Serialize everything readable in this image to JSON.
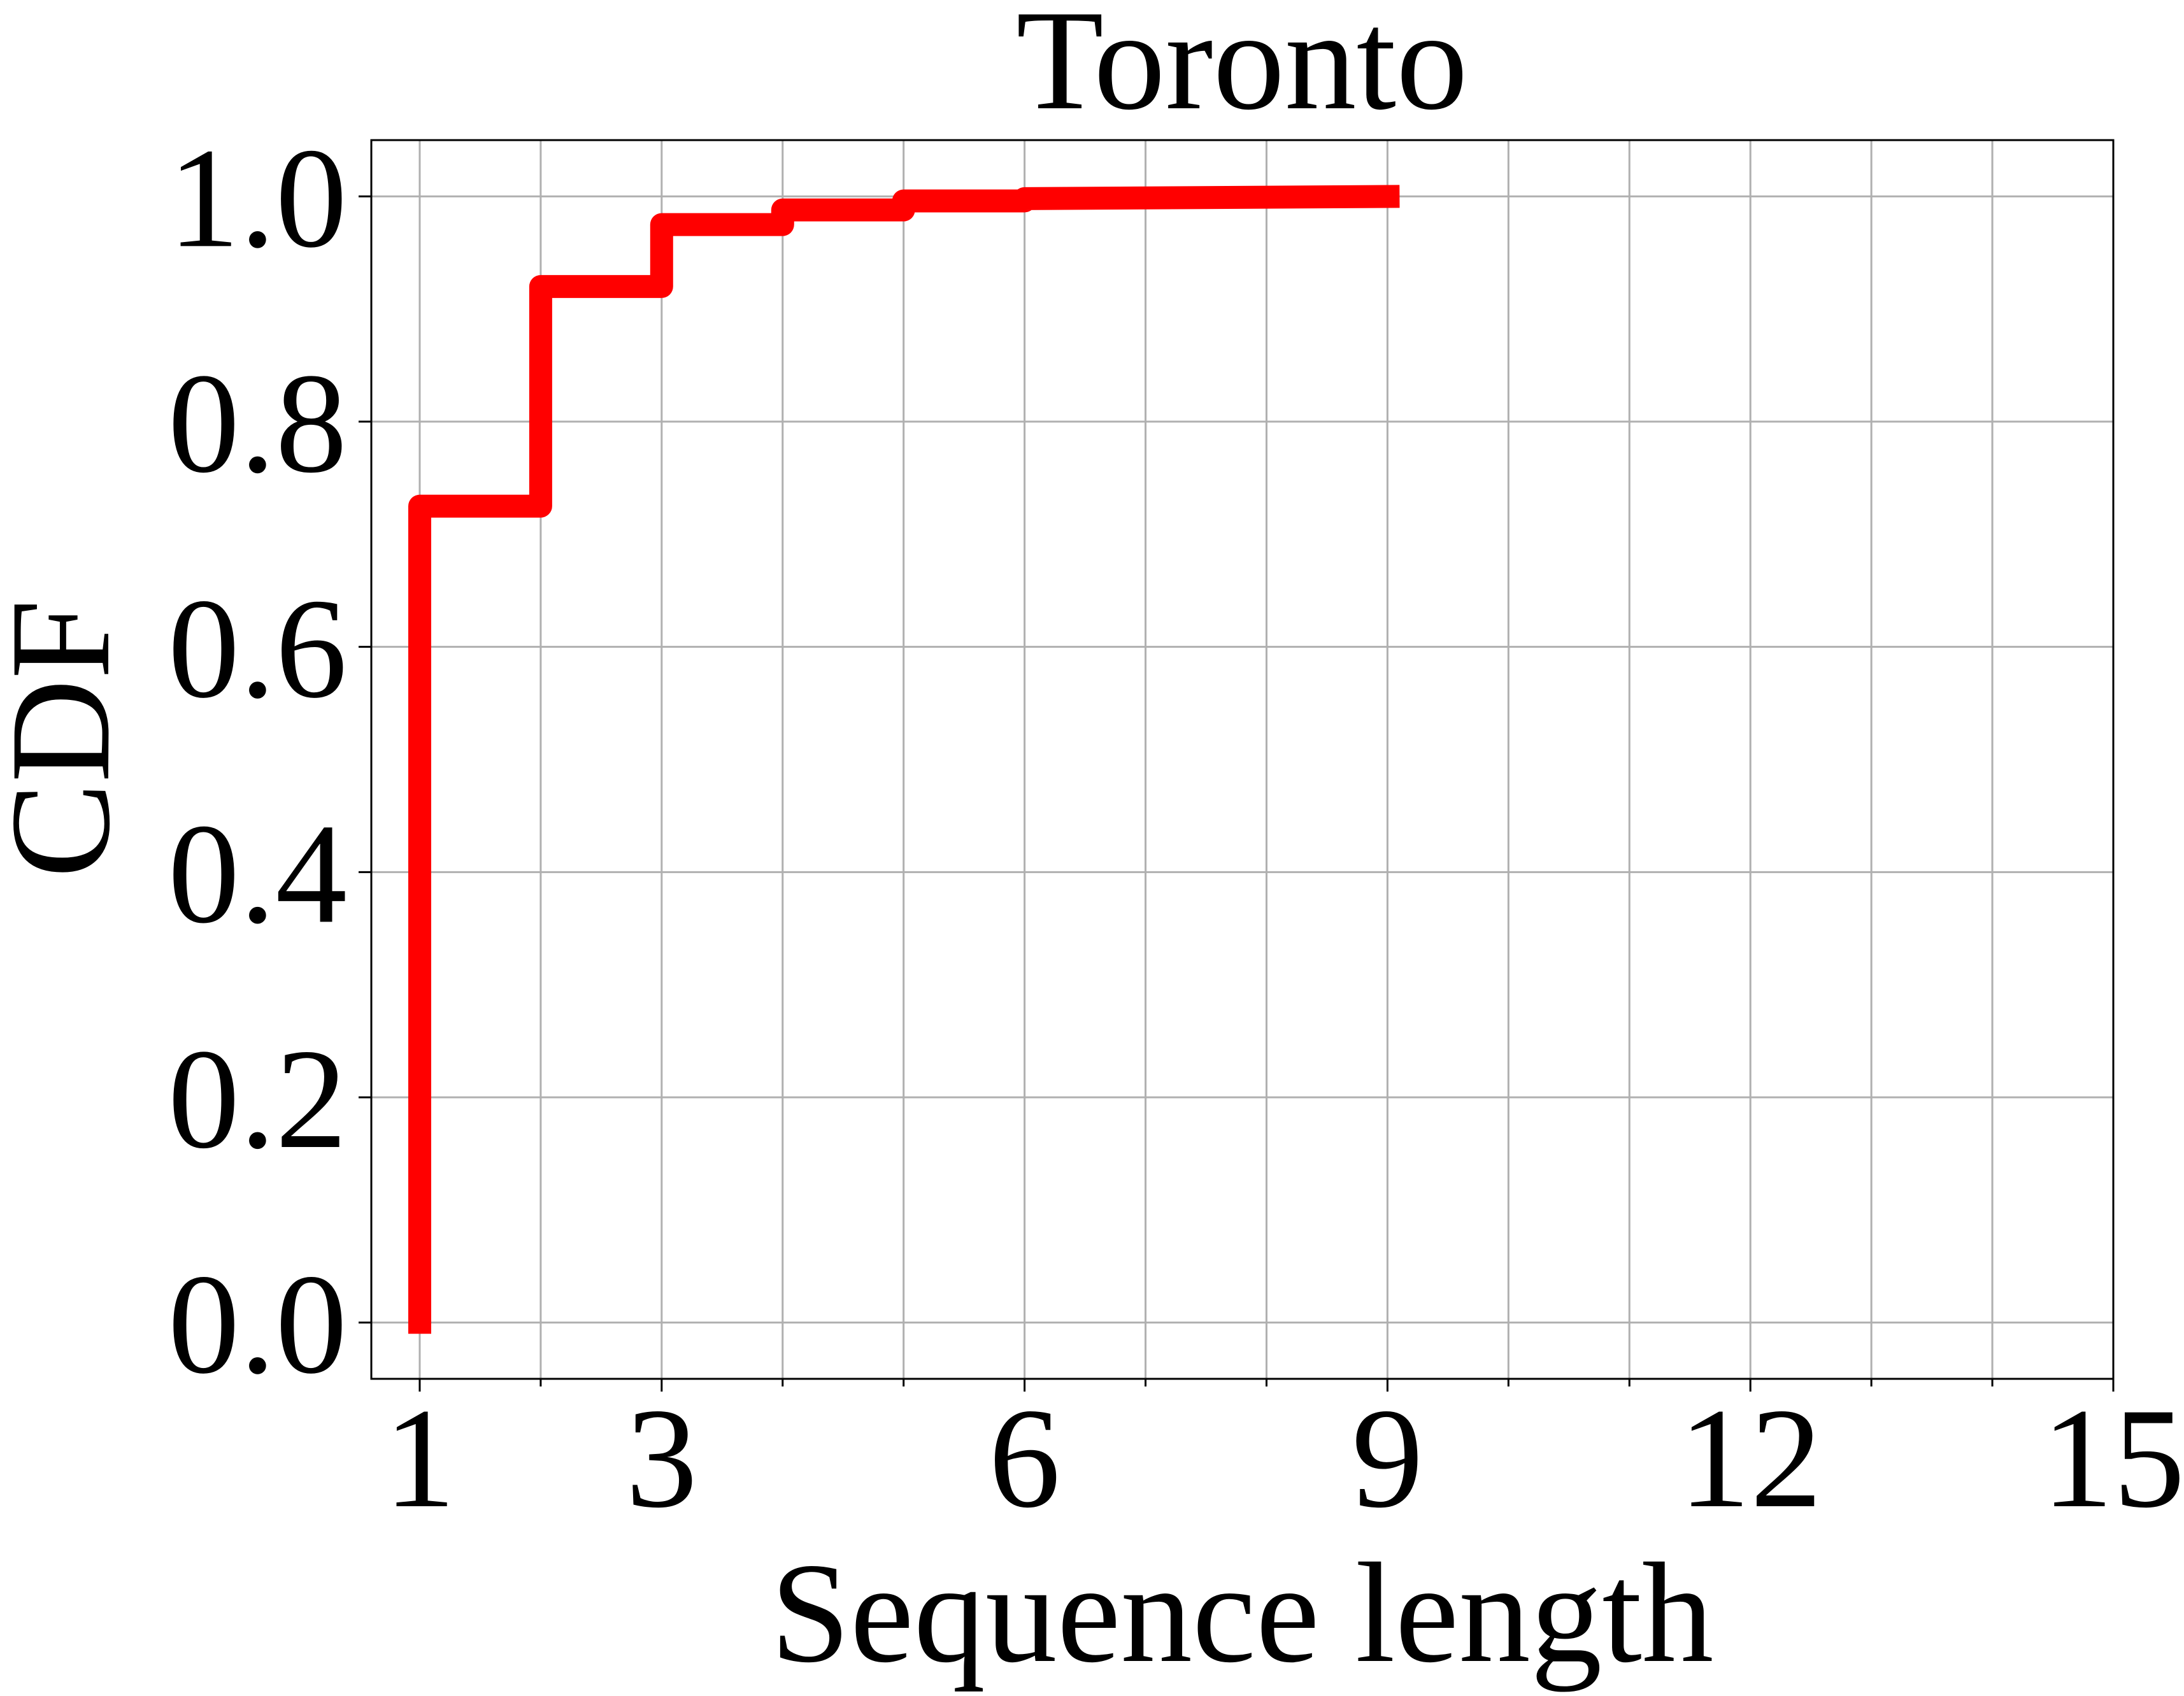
{
  "chart_data": {
    "type": "line",
    "step": true,
    "title": "Toronto",
    "xlabel": "Sequence length",
    "ylabel": "CDF",
    "xlim": [
      0.6,
      15
    ],
    "ylim": [
      -0.05,
      1.05
    ],
    "xticks": [
      1,
      3,
      6,
      9,
      12,
      15
    ],
    "xticks_minor": [
      2,
      4,
      5,
      7,
      8,
      10,
      11,
      13,
      14
    ],
    "yticks": [
      0.0,
      0.2,
      0.4,
      0.6,
      0.8,
      1.0
    ],
    "xtick_labels": [
      "1",
      "3",
      "6",
      "9",
      "12",
      "15"
    ],
    "ytick_labels": [
      "0.0",
      "0.2",
      "0.4",
      "0.6",
      "0.8",
      "1.0"
    ],
    "grid": true,
    "series": [
      {
        "color": "#ff0000",
        "x": [
          1,
          1,
          2,
          2,
          3,
          3,
          4,
          4,
          5,
          5,
          6,
          6,
          9.1
        ],
        "y": [
          -0.01,
          0.725,
          0.725,
          0.92,
          0.92,
          0.975,
          0.975,
          0.988,
          0.988,
          0.996,
          0.996,
          0.998,
          1.0
        ]
      }
    ]
  }
}
